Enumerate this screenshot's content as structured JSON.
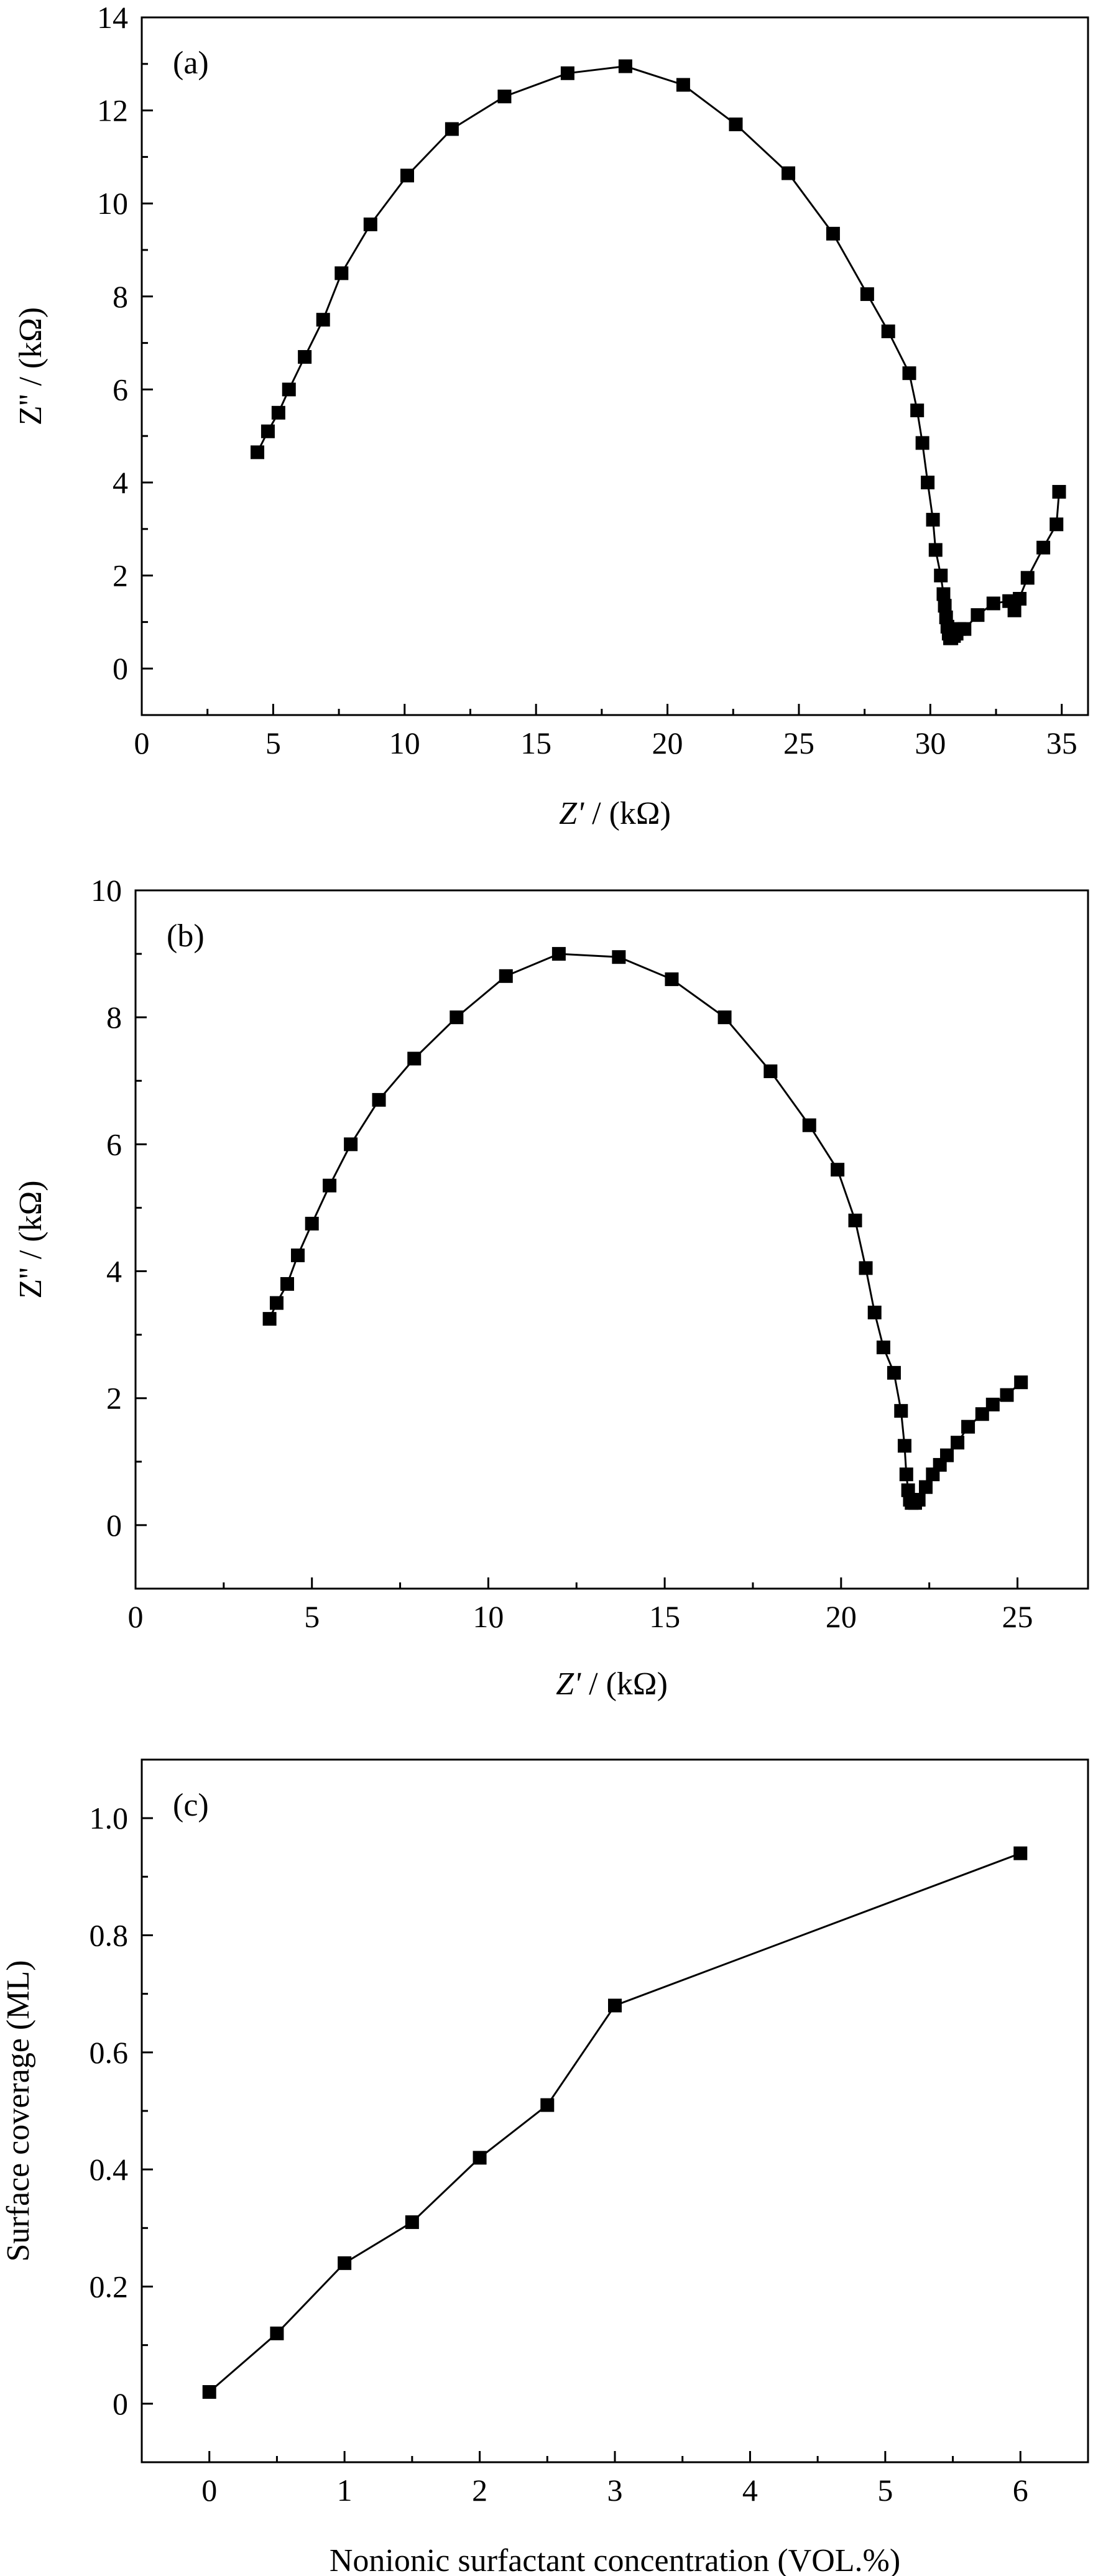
{
  "chart_data": [
    {
      "type": "line",
      "panel_label": "(a)",
      "xlabel": "Z' / (kΩ)",
      "xlabel_italic": "Z'",
      "xlabel_rest": " / (kΩ)",
      "ylabel": "Z'' / (kΩ)",
      "xlim": [
        0,
        36
      ],
      "ylim": [
        -1,
        14
      ],
      "xticks": [
        "0",
        "5",
        "10",
        "15",
        "20",
        "25",
        "30",
        "35"
      ],
      "yticks": [
        "0",
        "2",
        "4",
        "6",
        "8",
        "10",
        "12",
        "14"
      ],
      "marker": "square",
      "color": "#000000",
      "grid": false,
      "x": [
        4.4,
        4.8,
        5.2,
        5.6,
        6.2,
        6.9,
        7.6,
        8.7,
        10.1,
        11.8,
        13.8,
        16.2,
        18.4,
        20.6,
        22.6,
        24.6,
        26.3,
        27.6,
        28.4,
        29.2,
        29.5,
        29.7,
        29.9,
        30.1,
        30.2,
        30.4,
        30.5,
        30.55,
        30.6,
        30.65,
        30.7,
        30.75,
        30.8,
        30.9,
        31.0,
        31.1,
        31.3,
        31.8,
        32.4,
        33.0,
        33.4,
        33.2,
        33.7,
        34.3,
        34.8,
        34.9
      ],
      "y": [
        4.65,
        5.1,
        5.5,
        6.0,
        6.7,
        7.5,
        8.5,
        9.55,
        10.6,
        11.6,
        12.3,
        12.8,
        12.95,
        12.55,
        11.7,
        10.65,
        9.35,
        8.05,
        7.25,
        6.35,
        5.55,
        4.85,
        4.0,
        3.2,
        2.55,
        2.0,
        1.6,
        1.35,
        1.1,
        0.9,
        0.75,
        0.65,
        0.65,
        0.7,
        0.75,
        0.85,
        0.85,
        1.15,
        1.4,
        1.45,
        1.5,
        1.25,
        1.95,
        2.6,
        3.1,
        3.8
      ]
    },
    {
      "type": "line",
      "panel_label": "(b)",
      "xlabel": "Z' / (kΩ)",
      "xlabel_italic": "Z'",
      "xlabel_rest": " / (kΩ)",
      "ylabel": "Z'' / (kΩ)",
      "xlim": [
        0,
        27
      ],
      "ylim": [
        -1,
        10
      ],
      "xticks": [
        "0",
        "5",
        "10",
        "15",
        "20",
        "25"
      ],
      "yticks": [
        "0",
        "2",
        "4",
        "6",
        "8",
        "10"
      ],
      "marker": "square",
      "color": "#000000",
      "grid": false,
      "x": [
        3.8,
        4.0,
        4.3,
        4.6,
        5.0,
        5.5,
        6.1,
        6.9,
        7.9,
        9.1,
        10.5,
        12.0,
        13.7,
        15.2,
        16.7,
        18.0,
        19.1,
        19.9,
        20.4,
        20.7,
        20.95,
        21.2,
        21.5,
        21.7,
        21.8,
        21.85,
        21.9,
        21.95,
        22.0,
        22.1,
        22.2,
        22.4,
        22.6,
        22.8,
        23.0,
        23.3,
        23.6,
        24.0,
        24.3,
        24.7,
        25.1
      ],
      "y": [
        3.25,
        3.5,
        3.8,
        4.25,
        4.75,
        5.35,
        6.0,
        6.7,
        7.35,
        8.0,
        8.65,
        9.0,
        8.95,
        8.6,
        8.0,
        7.15,
        6.3,
        5.6,
        4.8,
        4.05,
        3.35,
        2.8,
        2.4,
        1.8,
        1.25,
        0.8,
        0.55,
        0.4,
        0.35,
        0.35,
        0.4,
        0.6,
        0.8,
        0.95,
        1.1,
        1.3,
        1.55,
        1.75,
        1.9,
        2.05,
        2.25
      ]
    },
    {
      "type": "line",
      "panel_label": "(c)",
      "xlabel": "Nonionic surfactant concentration (VOL.%)",
      "ylabel": "Surface coverage (ML)",
      "xlim": [
        -0.5,
        6.5
      ],
      "ylim": [
        -0.1,
        1.1
      ],
      "xticks": [
        "0",
        "1",
        "2",
        "3",
        "4",
        "5",
        "6"
      ],
      "yticks": [
        "0",
        "0.2",
        "0.4",
        "0.6",
        "0.8",
        "1.0"
      ],
      "marker": "square",
      "color": "#000000",
      "grid": false,
      "x": [
        0,
        0.5,
        1,
        1.5,
        2,
        2.5,
        3,
        6
      ],
      "y": [
        0.02,
        0.12,
        0.24,
        0.31,
        0.42,
        0.51,
        0.68,
        0.94
      ]
    }
  ]
}
